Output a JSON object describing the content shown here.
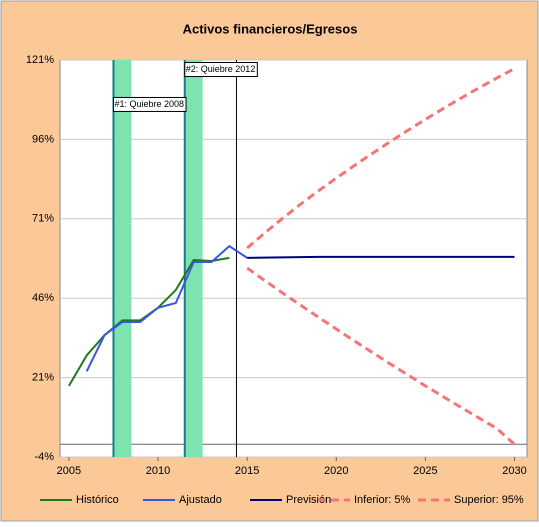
{
  "chart_data": {
    "type": "line",
    "title": "Activos financieros/Egresos",
    "xlim": [
      2004.5,
      2030.7
    ],
    "xticks": [
      2005,
      2010,
      2015,
      2020,
      2025,
      2030
    ],
    "ylim": [
      -4,
      121
    ],
    "yticks": [
      {
        "value": -4,
        "label": "-4%"
      },
      {
        "value": 21,
        "label": "21%"
      },
      {
        "value": 46,
        "label": "46%"
      },
      {
        "value": 71,
        "label": "71%"
      },
      {
        "value": 96,
        "label": "96%"
      },
      {
        "value": 121,
        "label": "121%"
      }
    ],
    "grid": true,
    "bands": [
      [
        2007.5,
        2008.5
      ],
      [
        2011.5,
        2012.5
      ]
    ],
    "forecast_start": 2014.4,
    "annotations": [
      {
        "label": "#1: Quiebre 2008",
        "x": 2007.5,
        "y": 107
      },
      {
        "label": "#2: Quiebre 2012",
        "x": 2011.5,
        "y": 118
      }
    ],
    "legend": "bottom",
    "series": [
      {
        "name": "Histórico",
        "color": "#1f7a1f",
        "dash": false,
        "x": [
          2005,
          2006,
          2007,
          2008,
          2009,
          2010,
          2011,
          2012,
          2013,
          2014
        ],
        "values": [
          18.4,
          28,
          34.4,
          39,
          39,
          43,
          48.6,
          58,
          57.7,
          58.7
        ]
      },
      {
        "name": "Ajustado",
        "color": "#3a56e0",
        "dash": false,
        "x": [
          2006,
          2007,
          2008,
          2009,
          2010,
          2011,
          2012,
          2013,
          2014,
          2015
        ],
        "values": [
          23,
          34.4,
          38.5,
          38.5,
          43,
          44.5,
          57.4,
          57.4,
          62.4,
          58.7
        ]
      },
      {
        "name": "Previsión",
        "color": "#000080",
        "dash": false,
        "x": [
          2015,
          2019,
          2030
        ],
        "values": [
          58.7,
          59,
          59
        ]
      },
      {
        "name": "Inferior: 5%",
        "color": "#f47575",
        "dash": true,
        "x": [
          2015,
          2016,
          2017,
          2018,
          2019,
          2020,
          2021,
          2022,
          2023,
          2024,
          2025,
          2026,
          2027,
          2028,
          2029,
          2030
        ],
        "values": [
          55.5,
          51.5,
          47.6,
          43.8,
          40,
          36.3,
          32.6,
          29,
          25.4,
          21.9,
          18.4,
          15,
          11.6,
          8.3,
          5,
          0
        ]
      },
      {
        "name": "Superior: 95%",
        "color": "#f47575",
        "dash": true,
        "x": [
          2015,
          2016,
          2017,
          2018,
          2019,
          2020,
          2021,
          2022,
          2023,
          2024,
          2025,
          2026,
          2027,
          2028,
          2029,
          2030
        ],
        "values": [
          61.8,
          66.6,
          71.2,
          75.6,
          79.8,
          83.8,
          87.7,
          91.5,
          95.2,
          98.8,
          102.3,
          105.7,
          109,
          112.2,
          115.3,
          118.3
        ]
      }
    ]
  }
}
